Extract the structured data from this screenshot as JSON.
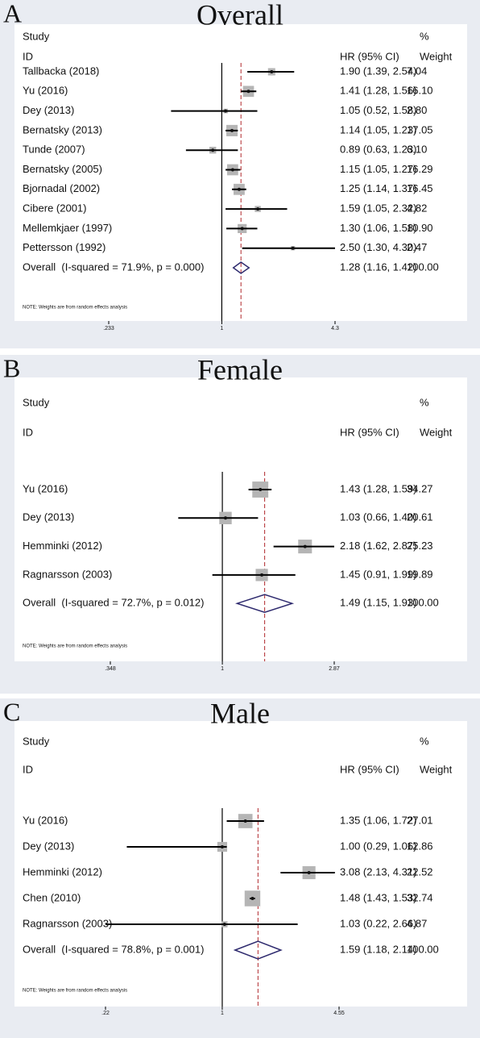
{
  "chart_data": [
    {
      "type": "forest",
      "panel": "A",
      "title": "Overall",
      "headers": {
        "study": "Study",
        "id": "ID",
        "hr": "HR (95% CI)",
        "pct": "%",
        "weight": "Weight"
      },
      "categories": [
        "Tallbacka (2018)",
        "Yu (2016)",
        "Dey (2013)",
        "Bernatsky (2013)",
        "Tunde (2007)",
        "Bernatsky (2005)",
        "Bjornadal (2002)",
        "Cibere (2001)",
        "Mellemkjaer (1997)",
        "Pettersson (1992)"
      ],
      "values": [
        1.9,
        1.41,
        1.05,
        1.14,
        0.89,
        1.15,
        1.25,
        1.59,
        1.3,
        2.5
      ],
      "lower": [
        1.39,
        1.28,
        0.52,
        1.05,
        0.63,
        1.05,
        1.14,
        1.05,
        1.06,
        1.3
      ],
      "upper": [
        2.54,
        1.56,
        1.58,
        1.23,
        1.23,
        1.27,
        1.37,
        2.32,
        1.58,
        4.3
      ],
      "value_labels": [
        "1.90 (1.39, 2.54)",
        "1.41 (1.28, 1.56)",
        "1.05 (0.52, 1.58)",
        "1.14 (1.05, 1.23)",
        "0.89 (0.63, 1.23)",
        "1.15 (1.05, 1.27)",
        "1.25 (1.14, 1.37)",
        "1.59 (1.05, 2.32)",
        "1.30 (1.06, 1.58)",
        "2.50 (1.30, 4.30)"
      ],
      "weights": [
        7.04,
        16.1,
        2.8,
        17.05,
        6.1,
        16.29,
        16.45,
        4.82,
        10.9,
        2.47
      ],
      "weight_labels": [
        "7.04",
        "16.10",
        "2.80",
        "17.05",
        "6.10",
        "16.29",
        "16.45",
        "4.82",
        "10.90",
        "2.47"
      ],
      "overall": {
        "label": "Overall  (I-squared = 71.9%, p = 0.000)",
        "value": 1.28,
        "lower": 1.16,
        "upper": 1.42,
        "value_label": "1.28 (1.16, 1.42)",
        "weight": 100.0,
        "weight_label": "100.00"
      },
      "note": "NOTE: Weights are from random effects analysis",
      "xlim": [
        0.233,
        4.3
      ],
      "xticks": [
        {
          "value": 0.233,
          "label": ".233"
        },
        1,
        4.3
      ],
      "log_scale": true
    },
    {
      "type": "forest",
      "panel": "B",
      "title": "Female",
      "headers": {
        "study": "Study",
        "id": "ID",
        "hr": "HR (95% CI)",
        "pct": "%",
        "weight": "Weight"
      },
      "categories": [
        "Yu (2016)",
        "Dey (2013)",
        "Hemminki (2012)",
        "Ragnarsson (2003)"
      ],
      "values": [
        1.43,
        1.03,
        2.18,
        1.45
      ],
      "lower": [
        1.28,
        0.66,
        1.62,
        0.91
      ],
      "upper": [
        1.59,
        1.4,
        2.87,
        1.99
      ],
      "value_labels": [
        "1.43 (1.28, 1.59)",
        "1.03 (0.66, 1.40)",
        "2.18 (1.62, 2.87)",
        "1.45 (0.91, 1.99)"
      ],
      "weights": [
        34.27,
        20.61,
        25.23,
        19.89
      ],
      "weight_labels": [
        "34.27",
        "20.61",
        "25.23",
        "19.89"
      ],
      "overall": {
        "label": "Overall  (I-squared = 72.7%, p = 0.012)",
        "value": 1.49,
        "lower": 1.15,
        "upper": 1.93,
        "value_label": "1.49 (1.15, 1.93)",
        "weight": 100.0,
        "weight_label": "100.00"
      },
      "note": "NOTE: Weights are from random effects analysis",
      "xlim": [
        0.348,
        2.87
      ],
      "xticks": [
        {
          "value": 0.348,
          "label": ".348"
        },
        1,
        2.87
      ],
      "log_scale": true
    },
    {
      "type": "forest",
      "panel": "C",
      "title": "Male",
      "headers": {
        "study": "Study",
        "id": "ID",
        "hr": "HR (95% CI)",
        "pct": "%",
        "weight": "Weight"
      },
      "categories": [
        "Yu (2016)",
        "Dey (2013)",
        "Hemminki (2012)",
        "Chen (2010)",
        "Ragnarsson (2003)"
      ],
      "values": [
        1.35,
        1.0,
        3.08,
        1.48,
        1.03
      ],
      "lower": [
        1.06,
        0.29,
        2.13,
        1.43,
        0.22
      ],
      "upper": [
        1.72,
        1.06,
        4.31,
        1.53,
        2.66
      ],
      "value_labels": [
        "1.35 (1.06, 1.72)",
        "1.00 (0.29, 1.06)",
        "3.08 (2.13, 4.31)",
        "1.48 (1.43, 1.53)",
        "1.03 (0.22, 2.66)"
      ],
      "weights": [
        27.01,
        12.86,
        22.52,
        32.74,
        4.87
      ],
      "weight_labels": [
        "27.01",
        "12.86",
        "22.52",
        "32.74",
        "4.87"
      ],
      "overall": {
        "label": "Overall  (I-squared = 78.8%, p = 0.001)",
        "value": 1.59,
        "lower": 1.18,
        "upper": 2.14,
        "value_label": "1.59 (1.18, 2.14)",
        "weight": 100.0,
        "weight_label": "100.00"
      },
      "note": "NOTE: Weights are from random effects analysis",
      "xlim": [
        0.22,
        4.55
      ],
      "xticks": [
        {
          "value": 0.22,
          "label": ".22"
        },
        1,
        4.55
      ],
      "log_scale": true
    }
  ]
}
